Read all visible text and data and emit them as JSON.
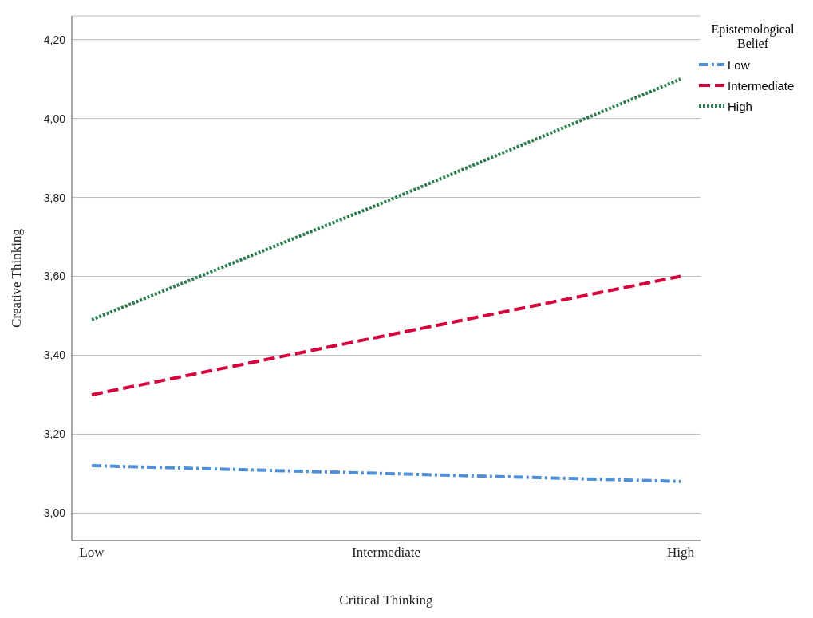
{
  "chart_data": {
    "type": "line",
    "xlabel": "Critical Thinking",
    "ylabel": "Creative Thinking",
    "legend_title": "Epistemological Belief",
    "categories": [
      "Low",
      "Intermediate",
      "High"
    ],
    "series": [
      {
        "name": "Low",
        "color": "#4f8fd6",
        "line_style": "dashdot",
        "values": [
          3.12,
          3.1,
          3.08
        ]
      },
      {
        "name": "Intermediate",
        "color": "#d6003a",
        "line_style": "dashed",
        "values": [
          3.3,
          3.45,
          3.6
        ]
      },
      {
        "name": "High",
        "color": "#2e7d4f",
        "line_style": "dotted",
        "values": [
          3.49,
          3.79,
          4.1
        ]
      }
    ],
    "ylim": [
      2.93,
      4.26
    ],
    "yticks": [
      {
        "value": 3.0,
        "label": "3,00"
      },
      {
        "value": 3.2,
        "label": "3,20"
      },
      {
        "value": 3.4,
        "label": "3,40"
      },
      {
        "value": 3.6,
        "label": "3,60"
      },
      {
        "value": 3.8,
        "label": "3,80"
      },
      {
        "value": 4.0,
        "label": "4,00"
      },
      {
        "value": 4.2,
        "label": "4,20"
      }
    ],
    "grid": "y",
    "legend": "top right",
    "marker": "none"
  }
}
